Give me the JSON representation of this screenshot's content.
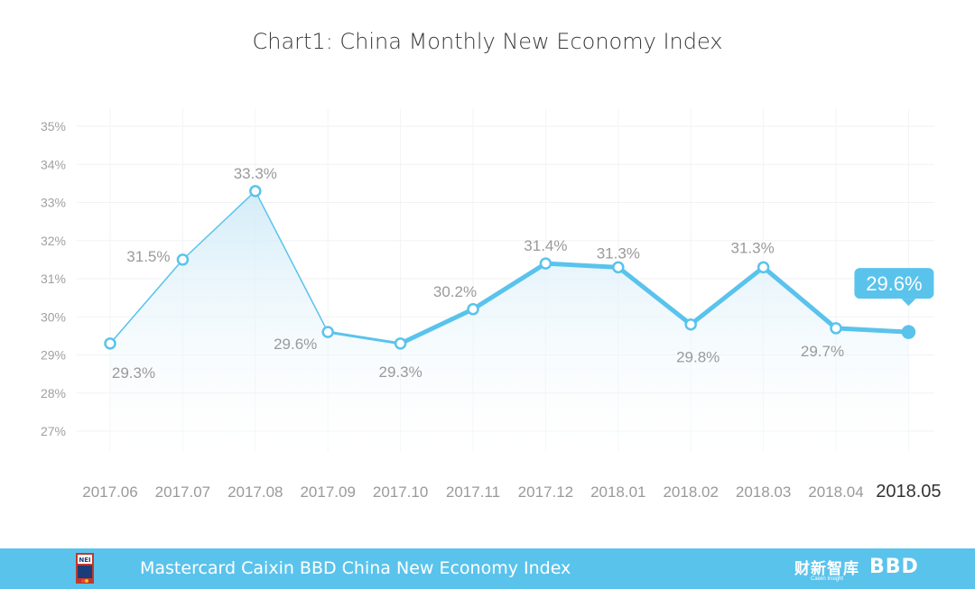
{
  "chart_data": {
    "type": "line",
    "title": "Chart1: China Monthly New Economy Index",
    "categories": [
      "2017.06",
      "2017.07",
      "2017.08",
      "2017.09",
      "2017.10",
      "2017.11",
      "2017.12",
      "2018.01",
      "2018.02",
      "2018.03",
      "2018.04",
      "2018.05"
    ],
    "values": [
      29.3,
      31.5,
      33.3,
      29.6,
      29.3,
      30.2,
      31.4,
      31.3,
      29.8,
      31.3,
      29.7,
      29.6
    ],
    "data_labels": [
      "29.3%",
      "31.5%",
      "33.3%",
      "29.6%",
      "29.3%",
      "30.2%",
      "31.4%",
      "31.3%",
      "29.8%",
      "31.3%",
      "29.7%",
      "29.6%"
    ],
    "ylim": [
      27,
      35
    ],
    "yticks": [
      "27%",
      "28%",
      "29%",
      "30%",
      "31%",
      "32%",
      "33%",
      "34%",
      "35%"
    ],
    "grid": true,
    "highlight_last": true,
    "colors": {
      "line": "#5ac3ec",
      "line_thin": "#7fd0f0",
      "area": "#dff2fb",
      "callout": "#5ac3ec"
    }
  },
  "footer": {
    "text": "Mastercard Caixin BBD China New Economy Index",
    "logo_text": "NEI",
    "brand_cn": "财新智库",
    "brand_en": "Caixin Insight",
    "brand_bbd": "BBD"
  }
}
